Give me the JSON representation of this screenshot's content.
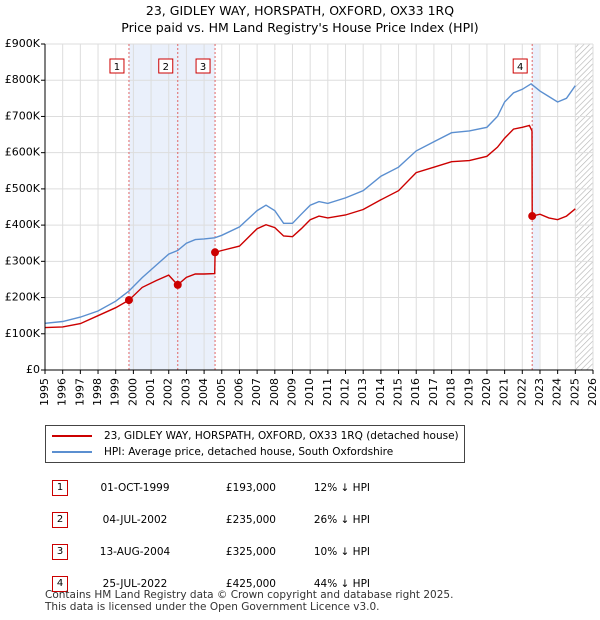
{
  "title_line1": "23, GIDLEY WAY, HORSPATH, OXFORD, OX33 1RQ",
  "title_line2": "Price paid vs. HM Land Registry's House Price Index (HPI)",
  "colors": {
    "property": "#cc0000",
    "hpi": "#5b8fd0",
    "shade": "#eaf0fb",
    "marker": "#cc0000"
  },
  "chart_data": {
    "type": "line",
    "x_range": [
      1995,
      2026
    ],
    "y_range": [
      0,
      900000
    ],
    "x_ticks": [
      1995,
      1996,
      1997,
      1998,
      1999,
      2000,
      2001,
      2002,
      2003,
      2004,
      2005,
      2006,
      2007,
      2008,
      2009,
      2010,
      2011,
      2012,
      2013,
      2014,
      2015,
      2016,
      2017,
      2018,
      2019,
      2020,
      2021,
      2022,
      2023,
      2024,
      2025,
      2026
    ],
    "y_ticks": [
      {
        "value": 0,
        "label": "£0"
      },
      {
        "value": 100000,
        "label": "£100K"
      },
      {
        "value": 200000,
        "label": "£200K"
      },
      {
        "value": 300000,
        "label": "£300K"
      },
      {
        "value": 400000,
        "label": "£400K"
      },
      {
        "value": 500000,
        "label": "£500K"
      },
      {
        "value": 600000,
        "label": "£600K"
      },
      {
        "value": 700000,
        "label": "£700K"
      },
      {
        "value": 800000,
        "label": "£800K"
      },
      {
        "value": 900000,
        "label": "£900K"
      }
    ],
    "shaded_ranges": [
      [
        1999.75,
        2004.62
      ],
      [
        2022.56,
        2022.95
      ]
    ],
    "hatched_from": 2025.0,
    "series": [
      {
        "name": "23, GIDLEY WAY, HORSPATH, OXFORD, OX33 1RQ (detached house)",
        "color": "#cc0000",
        "points": [
          [
            1995.0,
            117000
          ],
          [
            1996.0,
            119000
          ],
          [
            1997.0,
            128000
          ],
          [
            1998.0,
            150000
          ],
          [
            1999.0,
            172000
          ],
          [
            1999.75,
            193000
          ],
          [
            2000.5,
            228000
          ],
          [
            2001.3,
            247000
          ],
          [
            2002.0,
            262000
          ],
          [
            2002.5,
            235000
          ],
          [
            2003.0,
            256000
          ],
          [
            2003.5,
            265000
          ],
          [
            2004.0,
            265000
          ],
          [
            2004.6,
            266000
          ],
          [
            2004.62,
            325000
          ],
          [
            2005.0,
            330000
          ],
          [
            2006.0,
            342000
          ],
          [
            2007.0,
            390000
          ],
          [
            2007.5,
            401000
          ],
          [
            2008.0,
            393000
          ],
          [
            2008.5,
            370000
          ],
          [
            2009.0,
            368000
          ],
          [
            2009.5,
            390000
          ],
          [
            2010.0,
            415000
          ],
          [
            2010.5,
            425000
          ],
          [
            2011.0,
            420000
          ],
          [
            2012.0,
            428000
          ],
          [
            2013.0,
            443000
          ],
          [
            2014.0,
            470000
          ],
          [
            2015.0,
            495000
          ],
          [
            2016.0,
            545000
          ],
          [
            2017.0,
            560000
          ],
          [
            2018.0,
            575000
          ],
          [
            2019.0,
            578000
          ],
          [
            2020.0,
            590000
          ],
          [
            2020.6,
            615000
          ],
          [
            2021.0,
            640000
          ],
          [
            2021.5,
            665000
          ],
          [
            2022.0,
            670000
          ],
          [
            2022.4,
            675000
          ],
          [
            2022.55,
            660000
          ],
          [
            2022.56,
            425000
          ],
          [
            2023.0,
            430000
          ],
          [
            2023.5,
            420000
          ],
          [
            2024.0,
            415000
          ],
          [
            2024.5,
            425000
          ],
          [
            2025.0,
            445000
          ]
        ]
      },
      {
        "name": "HPI: Average price, detached house, South Oxfordshire",
        "color": "#5b8fd0",
        "points": [
          [
            1995.0,
            129000
          ],
          [
            1996.0,
            134000
          ],
          [
            1997.0,
            146000
          ],
          [
            1998.0,
            163000
          ],
          [
            1999.0,
            190000
          ],
          [
            1999.75,
            218000
          ],
          [
            2000.5,
            255000
          ],
          [
            2001.3,
            290000
          ],
          [
            2002.0,
            320000
          ],
          [
            2002.5,
            330000
          ],
          [
            2003.0,
            350000
          ],
          [
            2003.5,
            360000
          ],
          [
            2004.0,
            362000
          ],
          [
            2004.6,
            365000
          ],
          [
            2005.0,
            372000
          ],
          [
            2006.0,
            395000
          ],
          [
            2007.0,
            440000
          ],
          [
            2007.5,
            455000
          ],
          [
            2008.0,
            440000
          ],
          [
            2008.5,
            405000
          ],
          [
            2009.0,
            405000
          ],
          [
            2009.5,
            430000
          ],
          [
            2010.0,
            455000
          ],
          [
            2010.5,
            465000
          ],
          [
            2011.0,
            460000
          ],
          [
            2012.0,
            475000
          ],
          [
            2013.0,
            495000
          ],
          [
            2014.0,
            535000
          ],
          [
            2015.0,
            560000
          ],
          [
            2016.0,
            605000
          ],
          [
            2017.0,
            630000
          ],
          [
            2018.0,
            655000
          ],
          [
            2019.0,
            660000
          ],
          [
            2020.0,
            670000
          ],
          [
            2020.6,
            700000
          ],
          [
            2021.0,
            740000
          ],
          [
            2021.5,
            765000
          ],
          [
            2022.0,
            775000
          ],
          [
            2022.5,
            790000
          ],
          [
            2023.0,
            770000
          ],
          [
            2023.5,
            755000
          ],
          [
            2024.0,
            740000
          ],
          [
            2024.5,
            750000
          ],
          [
            2025.0,
            785000
          ]
        ]
      }
    ],
    "sales": [
      {
        "id": "1",
        "x": 1999.75,
        "price": 193000
      },
      {
        "id": "2",
        "x": 2002.51,
        "price": 235000
      },
      {
        "id": "3",
        "x": 2004.62,
        "price": 325000
      },
      {
        "id": "4",
        "x": 2022.56,
        "price": 425000
      }
    ]
  },
  "legend": {
    "property": "23, GIDLEY WAY, HORSPATH, OXFORD, OX33 1RQ (detached house)",
    "hpi": "HPI: Average price, detached house, South Oxfordshire"
  },
  "transactions": [
    {
      "num": "1",
      "date": "01-OCT-1999",
      "price": "£193,000",
      "hpi": "12% ↓ HPI"
    },
    {
      "num": "2",
      "date": "04-JUL-2002",
      "price": "£235,000",
      "hpi": "26% ↓ HPI"
    },
    {
      "num": "3",
      "date": "13-AUG-2004",
      "price": "£325,000",
      "hpi": "10% ↓ HPI"
    },
    {
      "num": "4",
      "date": "25-JUL-2022",
      "price": "£425,000",
      "hpi": "44% ↓ HPI"
    }
  ],
  "footer_line1": "Contains HM Land Registry data © Crown copyright and database right 2025.",
  "footer_line2": "This data is licensed under the Open Government Licence v3.0."
}
